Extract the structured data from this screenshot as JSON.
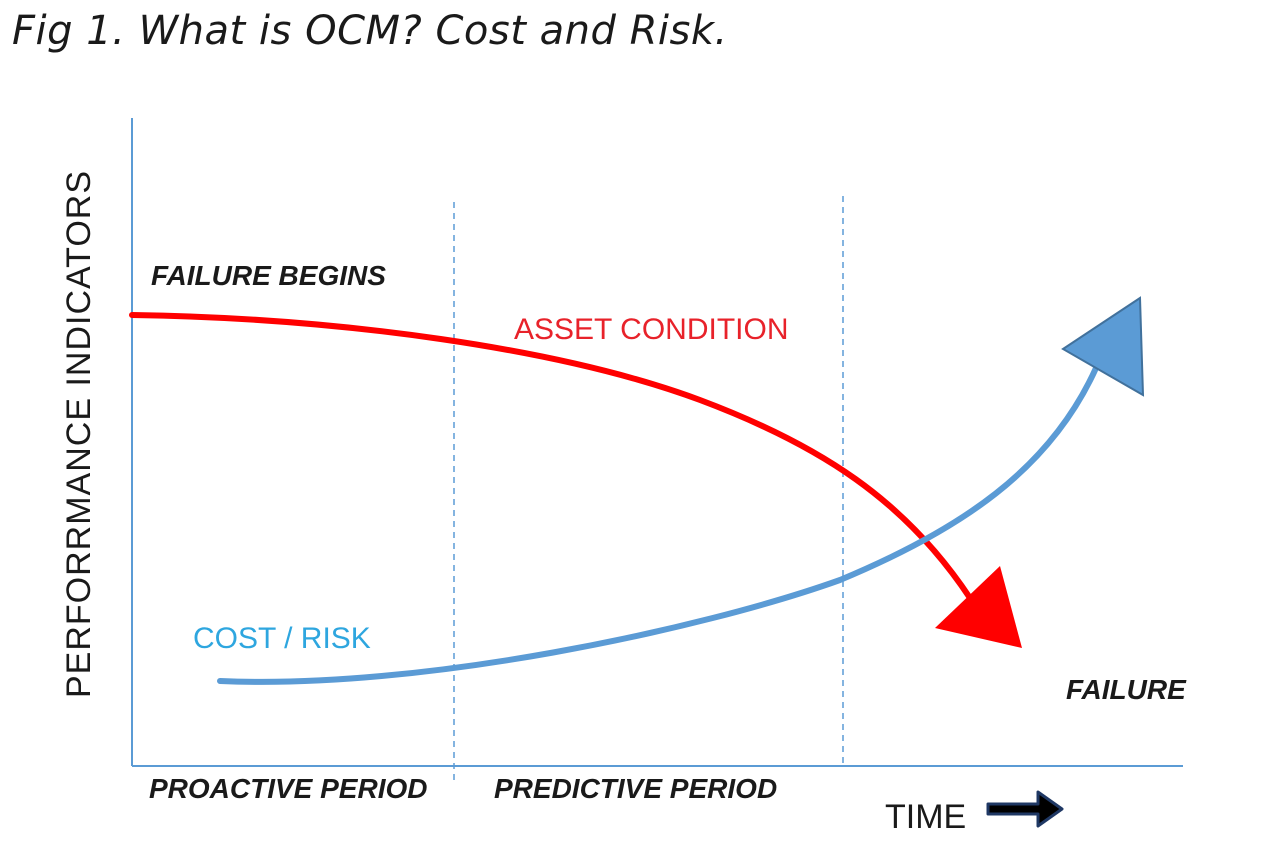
{
  "title": "Fig 1. What is OCM? Cost and Risk.",
  "axes": {
    "y_label": "PERFORRMANCE INDICATORS",
    "x_label": "TIME"
  },
  "periods": {
    "proactive": "PROACTIVE PERIOD",
    "predictive": "PREDICTIVE PERIOD"
  },
  "annotations": {
    "failure_begins": "FAILURE BEGINS",
    "failure": "FAILURE"
  },
  "curves": {
    "asset_condition": {
      "label": "ASSET CONDITION",
      "color": "#ff0000",
      "trend": "decreasing"
    },
    "cost_risk": {
      "label": "COST / RISK",
      "color": "#5b9bd5",
      "label_color": "#2ea6df",
      "trend": "increasing"
    }
  },
  "colors": {
    "axis": "#5b9bd5",
    "divider": "#5b9bd5",
    "time_arrow": "#1f3864"
  }
}
